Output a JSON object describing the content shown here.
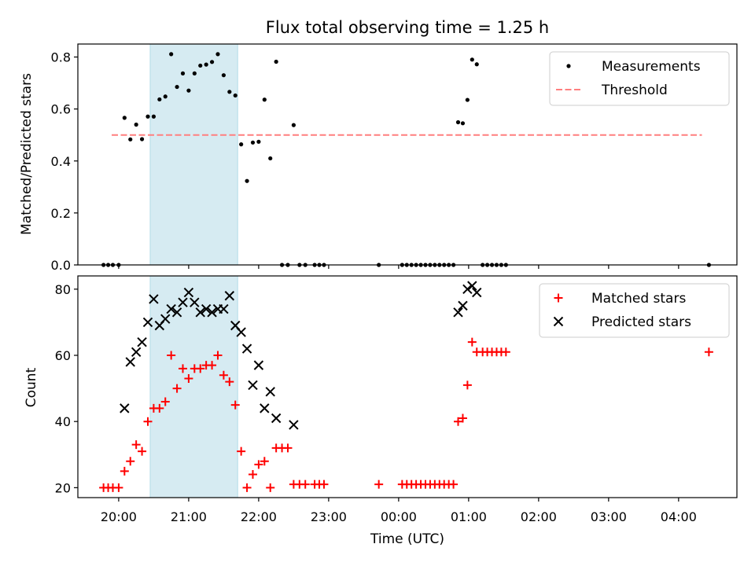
{
  "chart_data": [
    {
      "type": "scatter",
      "title": "Flux total observing time = 1.25 h",
      "xlabel": "",
      "ylabel": "Matched/Predicted stars",
      "xlim": [
        "19:25",
        "04:50"
      ],
      "ylim": [
        0,
        0.85
      ],
      "yticks": [
        "0.0",
        "0.2",
        "0.4",
        "0.6",
        "0.8"
      ],
      "highlight_span": [
        "20:27",
        "21:42"
      ],
      "highlight_color": "#add8e6",
      "legend_position": "top-right",
      "series": [
        {
          "name": "Measurements",
          "kind": "dots",
          "color": "#000000",
          "points": [
            {
              "x": "19:47",
              "y": 0.0
            },
            {
              "x": "19:51",
              "y": 0.0
            },
            {
              "x": "19:55",
              "y": 0.0
            },
            {
              "x": "20:00",
              "y": 0.0
            },
            {
              "x": "20:05",
              "y": 0.566
            },
            {
              "x": "20:10",
              "y": 0.483
            },
            {
              "x": "20:15",
              "y": 0.54
            },
            {
              "x": "20:20",
              "y": 0.484
            },
            {
              "x": "20:25",
              "y": 0.571
            },
            {
              "x": "20:30",
              "y": 0.571
            },
            {
              "x": "20:35",
              "y": 0.637
            },
            {
              "x": "20:40",
              "y": 0.648
            },
            {
              "x": "20:45",
              "y": 0.811
            },
            {
              "x": "20:50",
              "y": 0.685
            },
            {
              "x": "20:55",
              "y": 0.737
            },
            {
              "x": "21:00",
              "y": 0.671
            },
            {
              "x": "21:05",
              "y": 0.737
            },
            {
              "x": "21:10",
              "y": 0.767
            },
            {
              "x": "21:15",
              "y": 0.771
            },
            {
              "x": "21:20",
              "y": 0.781
            },
            {
              "x": "21:25",
              "y": 0.811
            },
            {
              "x": "21:30",
              "y": 0.73
            },
            {
              "x": "21:35",
              "y": 0.666
            },
            {
              "x": "21:40",
              "y": 0.652
            },
            {
              "x": "21:45",
              "y": 0.464
            },
            {
              "x": "21:50",
              "y": 0.323
            },
            {
              "x": "21:55",
              "y": 0.471
            },
            {
              "x": "22:00",
              "y": 0.474
            },
            {
              "x": "22:05",
              "y": 0.636
            },
            {
              "x": "22:10",
              "y": 0.41
            },
            {
              "x": "22:15",
              "y": 0.782
            },
            {
              "x": "22:20",
              "y": 0.0
            },
            {
              "x": "22:25",
              "y": 0.0
            },
            {
              "x": "22:30",
              "y": 0.538
            },
            {
              "x": "22:35",
              "y": 0.0
            },
            {
              "x": "22:40",
              "y": 0.0
            },
            {
              "x": "22:48",
              "y": 0.0
            },
            {
              "x": "22:52",
              "y": 0.0
            },
            {
              "x": "22:56",
              "y": 0.0
            },
            {
              "x": "23:43",
              "y": 0.0
            },
            {
              "x": "00:03",
              "y": 0.0
            },
            {
              "x": "00:07",
              "y": 0.0
            },
            {
              "x": "00:11",
              "y": 0.0
            },
            {
              "x": "00:15",
              "y": 0.0
            },
            {
              "x": "00:19",
              "y": 0.0
            },
            {
              "x": "00:23",
              "y": 0.0
            },
            {
              "x": "00:27",
              "y": 0.0
            },
            {
              "x": "00:31",
              "y": 0.0
            },
            {
              "x": "00:35",
              "y": 0.0
            },
            {
              "x": "00:39",
              "y": 0.0
            },
            {
              "x": "00:43",
              "y": 0.0
            },
            {
              "x": "00:47",
              "y": 0.0
            },
            {
              "x": "00:51",
              "y": 0.549
            },
            {
              "x": "00:55",
              "y": 0.545
            },
            {
              "x": "00:59",
              "y": 0.635
            },
            {
              "x": "01:03",
              "y": 0.79
            },
            {
              "x": "01:07",
              "y": 0.772
            },
            {
              "x": "01:12",
              "y": 0.0
            },
            {
              "x": "01:16",
              "y": 0.0
            },
            {
              "x": "01:20",
              "y": 0.0
            },
            {
              "x": "01:24",
              "y": 0.0
            },
            {
              "x": "01:28",
              "y": 0.0
            },
            {
              "x": "01:32",
              "y": 0.0
            },
            {
              "x": "04:26",
              "y": 0.0
            }
          ]
        },
        {
          "name": "Threshold",
          "kind": "dashed-line",
          "color": "#ff7f7f",
          "points": [
            {
              "x": "19:54",
              "y": 0.5
            },
            {
              "x": "04:20",
              "y": 0.5
            }
          ]
        }
      ]
    },
    {
      "type": "scatter",
      "title": "",
      "xlabel": "Time (UTC)",
      "ylabel": "Count",
      "xlim": [
        "19:25",
        "04:50"
      ],
      "ylim": [
        17,
        84
      ],
      "yticks": [
        "20",
        "40",
        "60",
        "80"
      ],
      "xticks": [
        "20:00",
        "21:00",
        "22:00",
        "23:00",
        "00:00",
        "01:00",
        "02:00",
        "03:00",
        "04:00"
      ],
      "highlight_span": [
        "20:27",
        "21:42"
      ],
      "highlight_color": "#add8e6",
      "legend_position": "top-right",
      "series": [
        {
          "name": "Matched stars",
          "kind": "plus",
          "color": "#ff0000",
          "points": [
            {
              "x": "19:47",
              "y": 20
            },
            {
              "x": "19:51",
              "y": 20
            },
            {
              "x": "19:55",
              "y": 20
            },
            {
              "x": "20:00",
              "y": 20
            },
            {
              "x": "20:05",
              "y": 25
            },
            {
              "x": "20:10",
              "y": 28
            },
            {
              "x": "20:15",
              "y": 33
            },
            {
              "x": "20:20",
              "y": 31
            },
            {
              "x": "20:25",
              "y": 40
            },
            {
              "x": "20:30",
              "y": 44
            },
            {
              "x": "20:35",
              "y": 44
            },
            {
              "x": "20:40",
              "y": 46
            },
            {
              "x": "20:45",
              "y": 60
            },
            {
              "x": "20:50",
              "y": 50
            },
            {
              "x": "20:55",
              "y": 56
            },
            {
              "x": "21:00",
              "y": 53
            },
            {
              "x": "21:05",
              "y": 56
            },
            {
              "x": "21:10",
              "y": 56
            },
            {
              "x": "21:15",
              "y": 57
            },
            {
              "x": "21:20",
              "y": 57
            },
            {
              "x": "21:25",
              "y": 60
            },
            {
              "x": "21:30",
              "y": 54
            },
            {
              "x": "21:35",
              "y": 52
            },
            {
              "x": "21:40",
              "y": 45
            },
            {
              "x": "21:45",
              "y": 31
            },
            {
              "x": "21:50",
              "y": 20
            },
            {
              "x": "21:55",
              "y": 24
            },
            {
              "x": "22:00",
              "y": 27
            },
            {
              "x": "22:05",
              "y": 28
            },
            {
              "x": "22:10",
              "y": 20
            },
            {
              "x": "22:15",
              "y": 32
            },
            {
              "x": "22:20",
              "y": 32
            },
            {
              "x": "22:25",
              "y": 32
            },
            {
              "x": "22:30",
              "y": 21
            },
            {
              "x": "22:35",
              "y": 21
            },
            {
              "x": "22:40",
              "y": 21
            },
            {
              "x": "22:48",
              "y": 21
            },
            {
              "x": "22:52",
              "y": 21
            },
            {
              "x": "22:56",
              "y": 21
            },
            {
              "x": "23:43",
              "y": 21
            },
            {
              "x": "00:03",
              "y": 21
            },
            {
              "x": "00:07",
              "y": 21
            },
            {
              "x": "00:11",
              "y": 21
            },
            {
              "x": "00:15",
              "y": 21
            },
            {
              "x": "00:19",
              "y": 21
            },
            {
              "x": "00:23",
              "y": 21
            },
            {
              "x": "00:27",
              "y": 21
            },
            {
              "x": "00:31",
              "y": 21
            },
            {
              "x": "00:35",
              "y": 21
            },
            {
              "x": "00:39",
              "y": 21
            },
            {
              "x": "00:43",
              "y": 21
            },
            {
              "x": "00:47",
              "y": 21
            },
            {
              "x": "00:51",
              "y": 40
            },
            {
              "x": "00:55",
              "y": 41
            },
            {
              "x": "00:59",
              "y": 51
            },
            {
              "x": "01:03",
              "y": 64
            },
            {
              "x": "01:07",
              "y": 61
            },
            {
              "x": "01:12",
              "y": 61
            },
            {
              "x": "01:16",
              "y": 61
            },
            {
              "x": "01:20",
              "y": 61
            },
            {
              "x": "01:24",
              "y": 61
            },
            {
              "x": "01:28",
              "y": 61
            },
            {
              "x": "01:32",
              "y": 61
            },
            {
              "x": "04:26",
              "y": 61
            }
          ]
        },
        {
          "name": "Predicted stars",
          "kind": "x",
          "color": "#000000",
          "points": [
            {
              "x": "20:05",
              "y": 44
            },
            {
              "x": "20:10",
              "y": 58
            },
            {
              "x": "20:15",
              "y": 61
            },
            {
              "x": "20:20",
              "y": 64
            },
            {
              "x": "20:25",
              "y": 70
            },
            {
              "x": "20:30",
              "y": 77
            },
            {
              "x": "20:35",
              "y": 69
            },
            {
              "x": "20:40",
              "y": 71
            },
            {
              "x": "20:45",
              "y": 74
            },
            {
              "x": "20:50",
              "y": 73
            },
            {
              "x": "20:55",
              "y": 76
            },
            {
              "x": "21:00",
              "y": 79
            },
            {
              "x": "21:05",
              "y": 76
            },
            {
              "x": "21:10",
              "y": 73
            },
            {
              "x": "21:15",
              "y": 74
            },
            {
              "x": "21:20",
              "y": 73
            },
            {
              "x": "21:25",
              "y": 74
            },
            {
              "x": "21:30",
              "y": 74
            },
            {
              "x": "21:35",
              "y": 78
            },
            {
              "x": "21:40",
              "y": 69
            },
            {
              "x": "21:45",
              "y": 67
            },
            {
              "x": "21:50",
              "y": 62
            },
            {
              "x": "21:55",
              "y": 51
            },
            {
              "x": "22:00",
              "y": 57
            },
            {
              "x": "22:05",
              "y": 44
            },
            {
              "x": "22:10",
              "y": 49
            },
            {
              "x": "22:15",
              "y": 41
            },
            {
              "x": "22:30",
              "y": 39
            },
            {
              "x": "00:51",
              "y": 73
            },
            {
              "x": "00:55",
              "y": 75
            },
            {
              "x": "00:59",
              "y": 80
            },
            {
              "x": "01:03",
              "y": 81
            },
            {
              "x": "01:07",
              "y": 79
            }
          ]
        }
      ]
    }
  ]
}
